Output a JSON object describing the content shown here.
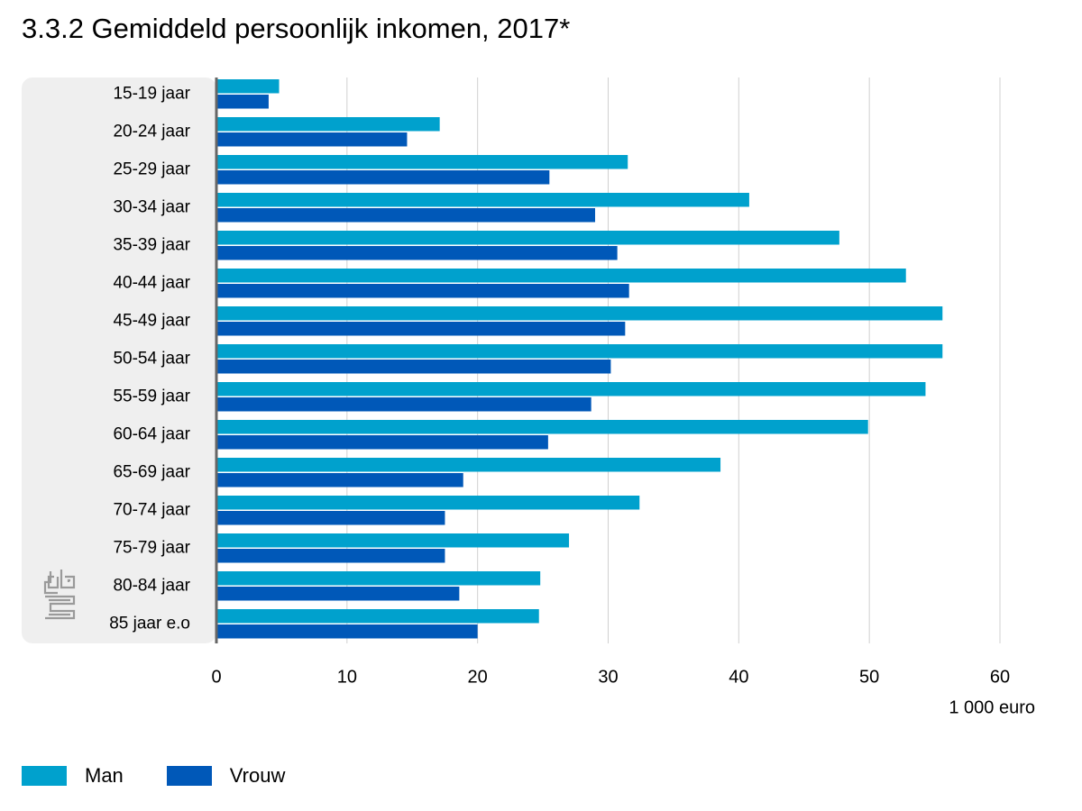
{
  "title": "3.3.2 Gemiddeld persoonlijk inkomen, 2017*",
  "colors": {
    "man": "#00A1CD",
    "vrouw": "#0058B8",
    "band": "#efefef",
    "grid": "#d0d0d0",
    "axis": "#666666",
    "logo": "#9a9a9a"
  },
  "logo": {
    "name": "cbs-logo",
    "text": "cbs"
  },
  "legend": [
    {
      "label": "Man",
      "color": "#00A1CD"
    },
    {
      "label": "Vrouw",
      "color": "#0058B8"
    }
  ],
  "chart_data": {
    "type": "bar",
    "orientation": "horizontal",
    "title": "3.3.2 Gemiddeld persoonlijk inkomen, 2017*",
    "xlabel": "1 000 euro",
    "ylabel": "",
    "xlim": [
      0,
      60
    ],
    "xticks": [
      0,
      10,
      20,
      30,
      40,
      50,
      60
    ],
    "grid": true,
    "legend_position": "bottom-left",
    "categories": [
      "15-19 jaar",
      "20-24 jaar",
      "25-29 jaar",
      "30-34 jaar",
      "35-39 jaar",
      "40-44 jaar",
      "45-49 jaar",
      "50-54 jaar",
      "55-59 jaar",
      "60-64 jaar",
      "65-69 jaar",
      "70-74 jaar",
      "75-79 jaar",
      "80-84 jaar",
      "85 jaar e.o"
    ],
    "series": [
      {
        "name": "Man",
        "color": "#00A1CD",
        "values": [
          4.8,
          17.1,
          31.5,
          40.8,
          47.7,
          52.8,
          55.6,
          55.6,
          54.3,
          49.9,
          38.6,
          32.4,
          27.0,
          24.8,
          24.7
        ]
      },
      {
        "name": "Vrouw",
        "color": "#0058B8",
        "values": [
          4.0,
          14.6,
          25.5,
          29.0,
          30.7,
          31.6,
          31.3,
          30.2,
          28.7,
          25.4,
          18.9,
          17.5,
          17.5,
          18.6,
          20.0
        ]
      }
    ]
  }
}
